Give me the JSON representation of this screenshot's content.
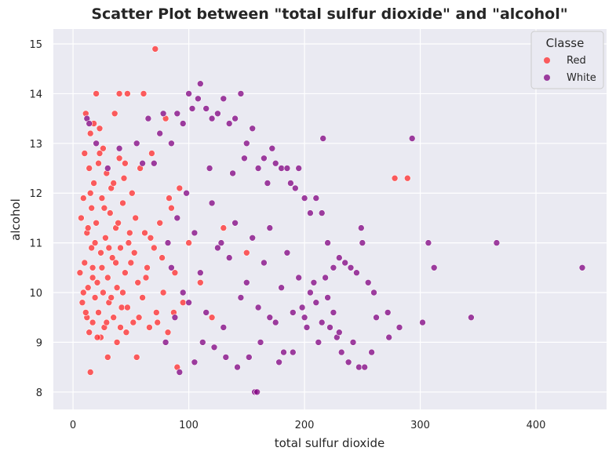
{
  "chart_data": {
    "type": "scatter",
    "title": "Scatter Plot between \"total sulfur dioxide\" and \"alcohol\"",
    "xlabel": "total sulfur dioxide",
    "ylabel": "alcohol",
    "xlim": [
      -17,
      461
    ],
    "ylim": [
      7.65,
      15.3
    ],
    "xticks": [
      0,
      100,
      200,
      300,
      400
    ],
    "xtick_labels": [
      "0",
      "100",
      "200",
      "300",
      "400"
    ],
    "yticks": [
      8,
      9,
      10,
      11,
      12,
      13,
      14,
      15
    ],
    "ytick_labels": [
      "8",
      "9",
      "10",
      "11",
      "12",
      "13",
      "14",
      "15"
    ],
    "grid": true,
    "legend": {
      "title": "Classe",
      "placement": "top-right"
    },
    "series": [
      {
        "name": "Red",
        "color": "#ff2a2a",
        "points": [
          [
            6,
            10.4
          ],
          [
            8,
            9.8
          ],
          [
            9,
            11.9
          ],
          [
            10,
            12.8
          ],
          [
            10,
            10.6
          ],
          [
            11,
            13.6
          ],
          [
            12,
            9.5
          ],
          [
            12,
            11.2
          ],
          [
            13,
            10.1
          ],
          [
            14,
            12.5
          ],
          [
            14,
            9.2
          ],
          [
            15,
            13.2
          ],
          [
            15,
            8.4
          ],
          [
            16,
            10.9
          ],
          [
            16,
            11.7
          ],
          [
            17,
            9.4
          ],
          [
            17,
            10.5
          ],
          [
            18,
            12.2
          ],
          [
            18,
            13.4
          ],
          [
            19,
            9.9
          ],
          [
            20,
            14.0
          ],
          [
            20,
            11.4
          ],
          [
            21,
            10.2
          ],
          [
            22,
            9.6
          ],
          [
            22,
            12.6
          ],
          [
            23,
            13.3
          ],
          [
            24,
            10.8
          ],
          [
            24,
            9.1
          ],
          [
            25,
            11.9
          ],
          [
            26,
            12.9
          ],
          [
            26,
            10.0
          ],
          [
            27,
            9.3
          ],
          [
            28,
            11.1
          ],
          [
            29,
            12.4
          ],
          [
            30,
            10.3
          ],
          [
            30,
            8.7
          ],
          [
            31,
            9.8
          ],
          [
            32,
            11.6
          ],
          [
            33,
            12.1
          ],
          [
            34,
            10.7
          ],
          [
            35,
            9.5
          ],
          [
            36,
            13.6
          ],
          [
            37,
            11.3
          ],
          [
            38,
            10.1
          ],
          [
            38,
            9.0
          ],
          [
            40,
            12.7
          ],
          [
            40,
            14.0
          ],
          [
            41,
            10.9
          ],
          [
            42,
            9.7
          ],
          [
            43,
            11.8
          ],
          [
            44,
            12.3
          ],
          [
            45,
            10.4
          ],
          [
            46,
            9.2
          ],
          [
            47,
            14.0
          ],
          [
            48,
            11.0
          ],
          [
            50,
            10.6
          ],
          [
            51,
            12.0
          ],
          [
            52,
            9.4
          ],
          [
            54,
            11.5
          ],
          [
            55,
            8.7
          ],
          [
            56,
            10.2
          ],
          [
            58,
            12.5
          ],
          [
            60,
            9.9
          ],
          [
            61,
            14.0
          ],
          [
            62,
            11.2
          ],
          [
            64,
            10.5
          ],
          [
            66,
            9.3
          ],
          [
            68,
            12.8
          ],
          [
            70,
            10.9
          ],
          [
            71,
            14.9
          ],
          [
            72,
            9.6
          ],
          [
            75,
            11.4
          ],
          [
            78,
            10.0
          ],
          [
            80,
            13.5
          ],
          [
            82,
            9.2
          ],
          [
            85,
            11.7
          ],
          [
            88,
            10.4
          ],
          [
            90,
            8.5
          ],
          [
            92,
            12.1
          ],
          [
            95,
            9.8
          ],
          [
            100,
            11.0
          ],
          [
            110,
            10.2
          ],
          [
            120,
            9.5
          ],
          [
            130,
            11.3
          ],
          [
            150,
            10.8
          ],
          [
            278,
            12.3
          ],
          [
            289,
            12.3
          ],
          [
            7,
            11.5
          ],
          [
            9,
            10.0
          ],
          [
            11,
            9.6
          ],
          [
            13,
            11.3
          ],
          [
            15,
            12.0
          ],
          [
            17,
            10.3
          ],
          [
            19,
            11.0
          ],
          [
            21,
            9.1
          ],
          [
            23,
            12.8
          ],
          [
            25,
            10.5
          ],
          [
            27,
            11.7
          ],
          [
            29,
            9.4
          ],
          [
            31,
            10.9
          ],
          [
            33,
            9.9
          ],
          [
            35,
            12.2
          ],
          [
            37,
            10.6
          ],
          [
            39,
            11.4
          ],
          [
            41,
            9.3
          ],
          [
            43,
            10.0
          ],
          [
            45,
            12.6
          ],
          [
            47,
            9.7
          ],
          [
            49,
            11.2
          ],
          [
            53,
            10.8
          ],
          [
            57,
            9.5
          ],
          [
            63,
            10.3
          ],
          [
            67,
            11.1
          ],
          [
            73,
            9.4
          ],
          [
            77,
            10.7
          ],
          [
            83,
            11.9
          ],
          [
            87,
            9.6
          ]
        ]
      },
      {
        "name": "White",
        "color": "#800080",
        "points": [
          [
            12,
            13.5
          ],
          [
            14,
            13.4
          ],
          [
            20,
            13.0
          ],
          [
            30,
            12.5
          ],
          [
            40,
            12.9
          ],
          [
            55,
            13.0
          ],
          [
            60,
            12.6
          ],
          [
            65,
            13.5
          ],
          [
            70,
            12.6
          ],
          [
            75,
            13.2
          ],
          [
            78,
            13.6
          ],
          [
            80,
            9.0
          ],
          [
            82,
            11.0
          ],
          [
            85,
            13.0
          ],
          [
            88,
            9.5
          ],
          [
            90,
            13.6
          ],
          [
            92,
            8.4
          ],
          [
            95,
            13.4
          ],
          [
            98,
            12.0
          ],
          [
            100,
            14.0
          ],
          [
            103,
            13.7
          ],
          [
            105,
            8.6
          ],
          [
            108,
            13.9
          ],
          [
            110,
            14.2
          ],
          [
            112,
            9.0
          ],
          [
            115,
            13.7
          ],
          [
            118,
            12.5
          ],
          [
            120,
            13.5
          ],
          [
            122,
            8.9
          ],
          [
            125,
            13.6
          ],
          [
            128,
            11.0
          ],
          [
            130,
            13.9
          ],
          [
            132,
            8.7
          ],
          [
            135,
            13.4
          ],
          [
            138,
            12.4
          ],
          [
            140,
            13.5
          ],
          [
            142,
            8.5
          ],
          [
            145,
            14.0
          ],
          [
            148,
            12.7
          ],
          [
            150,
            13.0
          ],
          [
            152,
            8.7
          ],
          [
            155,
            13.3
          ],
          [
            157,
            8.0
          ],
          [
            159,
            8.0
          ],
          [
            160,
            12.5
          ],
          [
            162,
            9.0
          ],
          [
            165,
            12.7
          ],
          [
            168,
            12.2
          ],
          [
            170,
            9.5
          ],
          [
            172,
            12.9
          ],
          [
            175,
            12.6
          ],
          [
            178,
            8.6
          ],
          [
            180,
            12.5
          ],
          [
            182,
            8.8
          ],
          [
            185,
            12.5
          ],
          [
            188,
            12.2
          ],
          [
            190,
            8.8
          ],
          [
            192,
            12.1
          ],
          [
            195,
            12.5
          ],
          [
            198,
            9.7
          ],
          [
            200,
            11.9
          ],
          [
            202,
            9.3
          ],
          [
            205,
            11.6
          ],
          [
            208,
            10.2
          ],
          [
            210,
            11.9
          ],
          [
            212,
            9.0
          ],
          [
            215,
            11.6
          ],
          [
            216,
            13.1
          ],
          [
            218,
            10.3
          ],
          [
            220,
            11.0
          ],
          [
            222,
            9.3
          ],
          [
            225,
            10.5
          ],
          [
            228,
            9.1
          ],
          [
            230,
            10.7
          ],
          [
            232,
            8.8
          ],
          [
            235,
            10.6
          ],
          [
            238,
            8.6
          ],
          [
            240,
            10.5
          ],
          [
            242,
            9.0
          ],
          [
            245,
            10.4
          ],
          [
            247,
            8.5
          ],
          [
            249,
            11.3
          ],
          [
            250,
            11.0
          ],
          [
            252,
            8.5
          ],
          [
            255,
            10.2
          ],
          [
            258,
            8.8
          ],
          [
            260,
            10.0
          ],
          [
            262,
            9.5
          ],
          [
            272,
            9.6
          ],
          [
            273,
            9.1
          ],
          [
            282,
            9.3
          ],
          [
            293,
            13.1
          ],
          [
            302,
            9.4
          ],
          [
            307,
            11.0
          ],
          [
            312,
            10.5
          ],
          [
            344,
            9.5
          ],
          [
            366,
            11.0
          ],
          [
            440,
            10.5
          ],
          [
            85,
            10.5
          ],
          [
            90,
            11.5
          ],
          [
            95,
            10.0
          ],
          [
            100,
            9.8
          ],
          [
            105,
            11.2
          ],
          [
            110,
            10.4
          ],
          [
            115,
            9.6
          ],
          [
            120,
            11.8
          ],
          [
            125,
            10.9
          ],
          [
            130,
            9.3
          ],
          [
            135,
            10.7
          ],
          [
            140,
            11.4
          ],
          [
            145,
            9.9
          ],
          [
            150,
            10.2
          ],
          [
            155,
            11.1
          ],
          [
            160,
            9.7
          ],
          [
            165,
            10.6
          ],
          [
            170,
            11.3
          ],
          [
            175,
            9.4
          ],
          [
            180,
            10.1
          ],
          [
            185,
            10.8
          ],
          [
            190,
            9.6
          ],
          [
            195,
            10.3
          ],
          [
            200,
            9.5
          ],
          [
            205,
            10.0
          ],
          [
            210,
            9.8
          ],
          [
            215,
            9.4
          ],
          [
            220,
            9.9
          ],
          [
            225,
            9.6
          ],
          [
            230,
            9.2
          ]
        ]
      }
    ]
  }
}
